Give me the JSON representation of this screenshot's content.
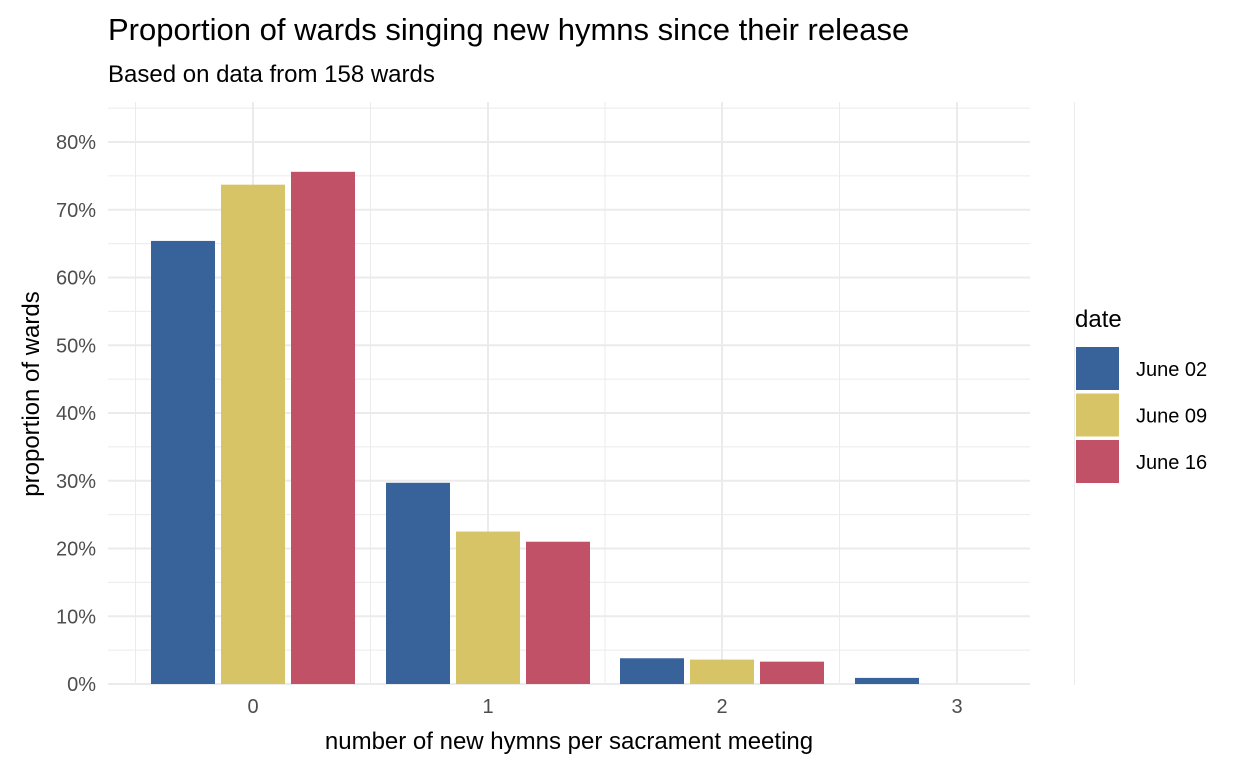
{
  "chart_data": {
    "type": "bar",
    "title": "Proportion of wards singing new hymns since their release",
    "subtitle": "Based on data from 158 wards",
    "xlabel": "number of new hymns per sacrament meeting",
    "ylabel": "proportion of wards",
    "categories": [
      "0",
      "1",
      "2",
      "3"
    ],
    "yticks": [
      "0%",
      "10%",
      "20%",
      "30%",
      "40%",
      "50%",
      "60%",
      "70%",
      "80%"
    ],
    "ylim": [
      0,
      0.84
    ],
    "grid": true,
    "legend": {
      "title": "date",
      "position": "right"
    },
    "series": [
      {
        "name": "June 02",
        "color": "#38629a",
        "values": [
          0.654,
          0.297,
          0.038,
          0.009
        ]
      },
      {
        "name": "June 09",
        "color": "#d7c466",
        "values": [
          0.737,
          0.225,
          0.036,
          null
        ]
      },
      {
        "name": "June 16",
        "color": "#c05167",
        "values": [
          0.756,
          0.21,
          0.033,
          null
        ]
      }
    ]
  }
}
